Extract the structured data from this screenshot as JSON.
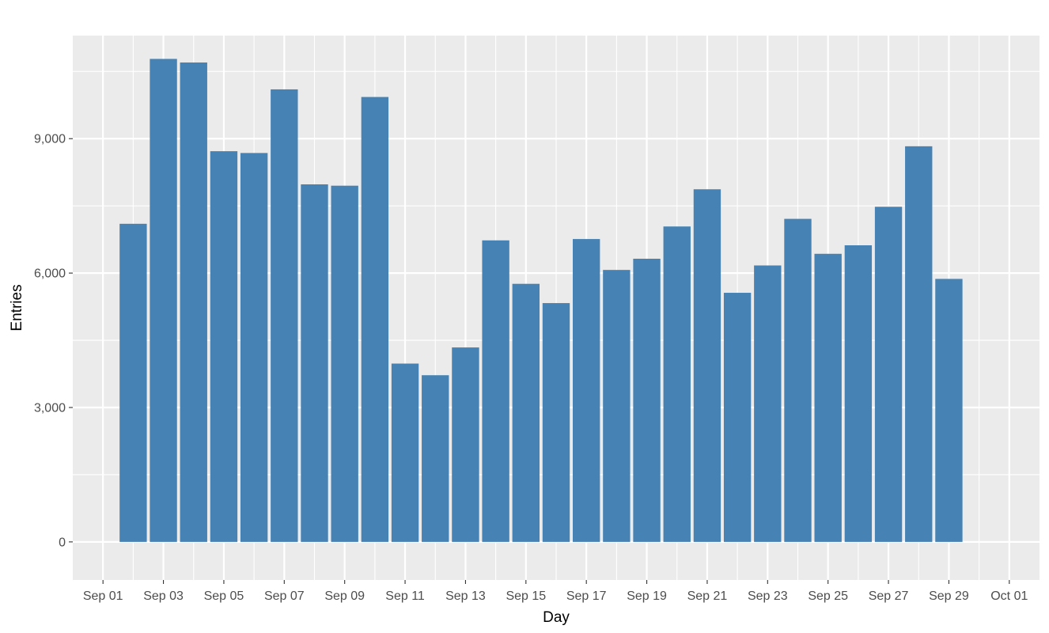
{
  "chart_data": {
    "type": "bar",
    "xlabel": "Day",
    "ylabel": "Entries",
    "bar_color": "#4682B4",
    "panel_background": "#EBEBEB",
    "grid_color": "#FFFFFF",
    "grid": true,
    "x_range": [
      "2020-08-31",
      "2020-10-02"
    ],
    "ylim": [
      -850,
      11300
    ],
    "x": [
      "Sep 02",
      "Sep 03",
      "Sep 04",
      "Sep 05",
      "Sep 06",
      "Sep 07",
      "Sep 08",
      "Sep 09",
      "Sep 10",
      "Sep 11",
      "Sep 12",
      "Sep 13",
      "Sep 14",
      "Sep 15",
      "Sep 16",
      "Sep 17",
      "Sep 18",
      "Sep 19",
      "Sep 20",
      "Sep 21",
      "Sep 22",
      "Sep 23",
      "Sep 24",
      "Sep 25",
      "Sep 26",
      "Sep 27",
      "Sep 28",
      "Sep 29"
    ],
    "values": [
      7100,
      10780,
      10700,
      8720,
      8680,
      10100,
      7980,
      7950,
      9930,
      3980,
      3720,
      4340,
      6730,
      5760,
      5330,
      6760,
      6070,
      6320,
      7040,
      7870,
      5560,
      6170,
      7210,
      6430,
      6620,
      7480,
      8830,
      5870
    ],
    "x_ticks": [
      "Sep 01",
      "Sep 03",
      "Sep 05",
      "Sep 07",
      "Sep 09",
      "Sep 11",
      "Sep 13",
      "Sep 15",
      "Sep 17",
      "Sep 19",
      "Sep 21",
      "Sep 23",
      "Sep 25",
      "Sep 27",
      "Sep 29",
      "Oct 01"
    ],
    "y_ticks": [
      "0",
      "3,000",
      "6,000",
      "9,000"
    ]
  }
}
